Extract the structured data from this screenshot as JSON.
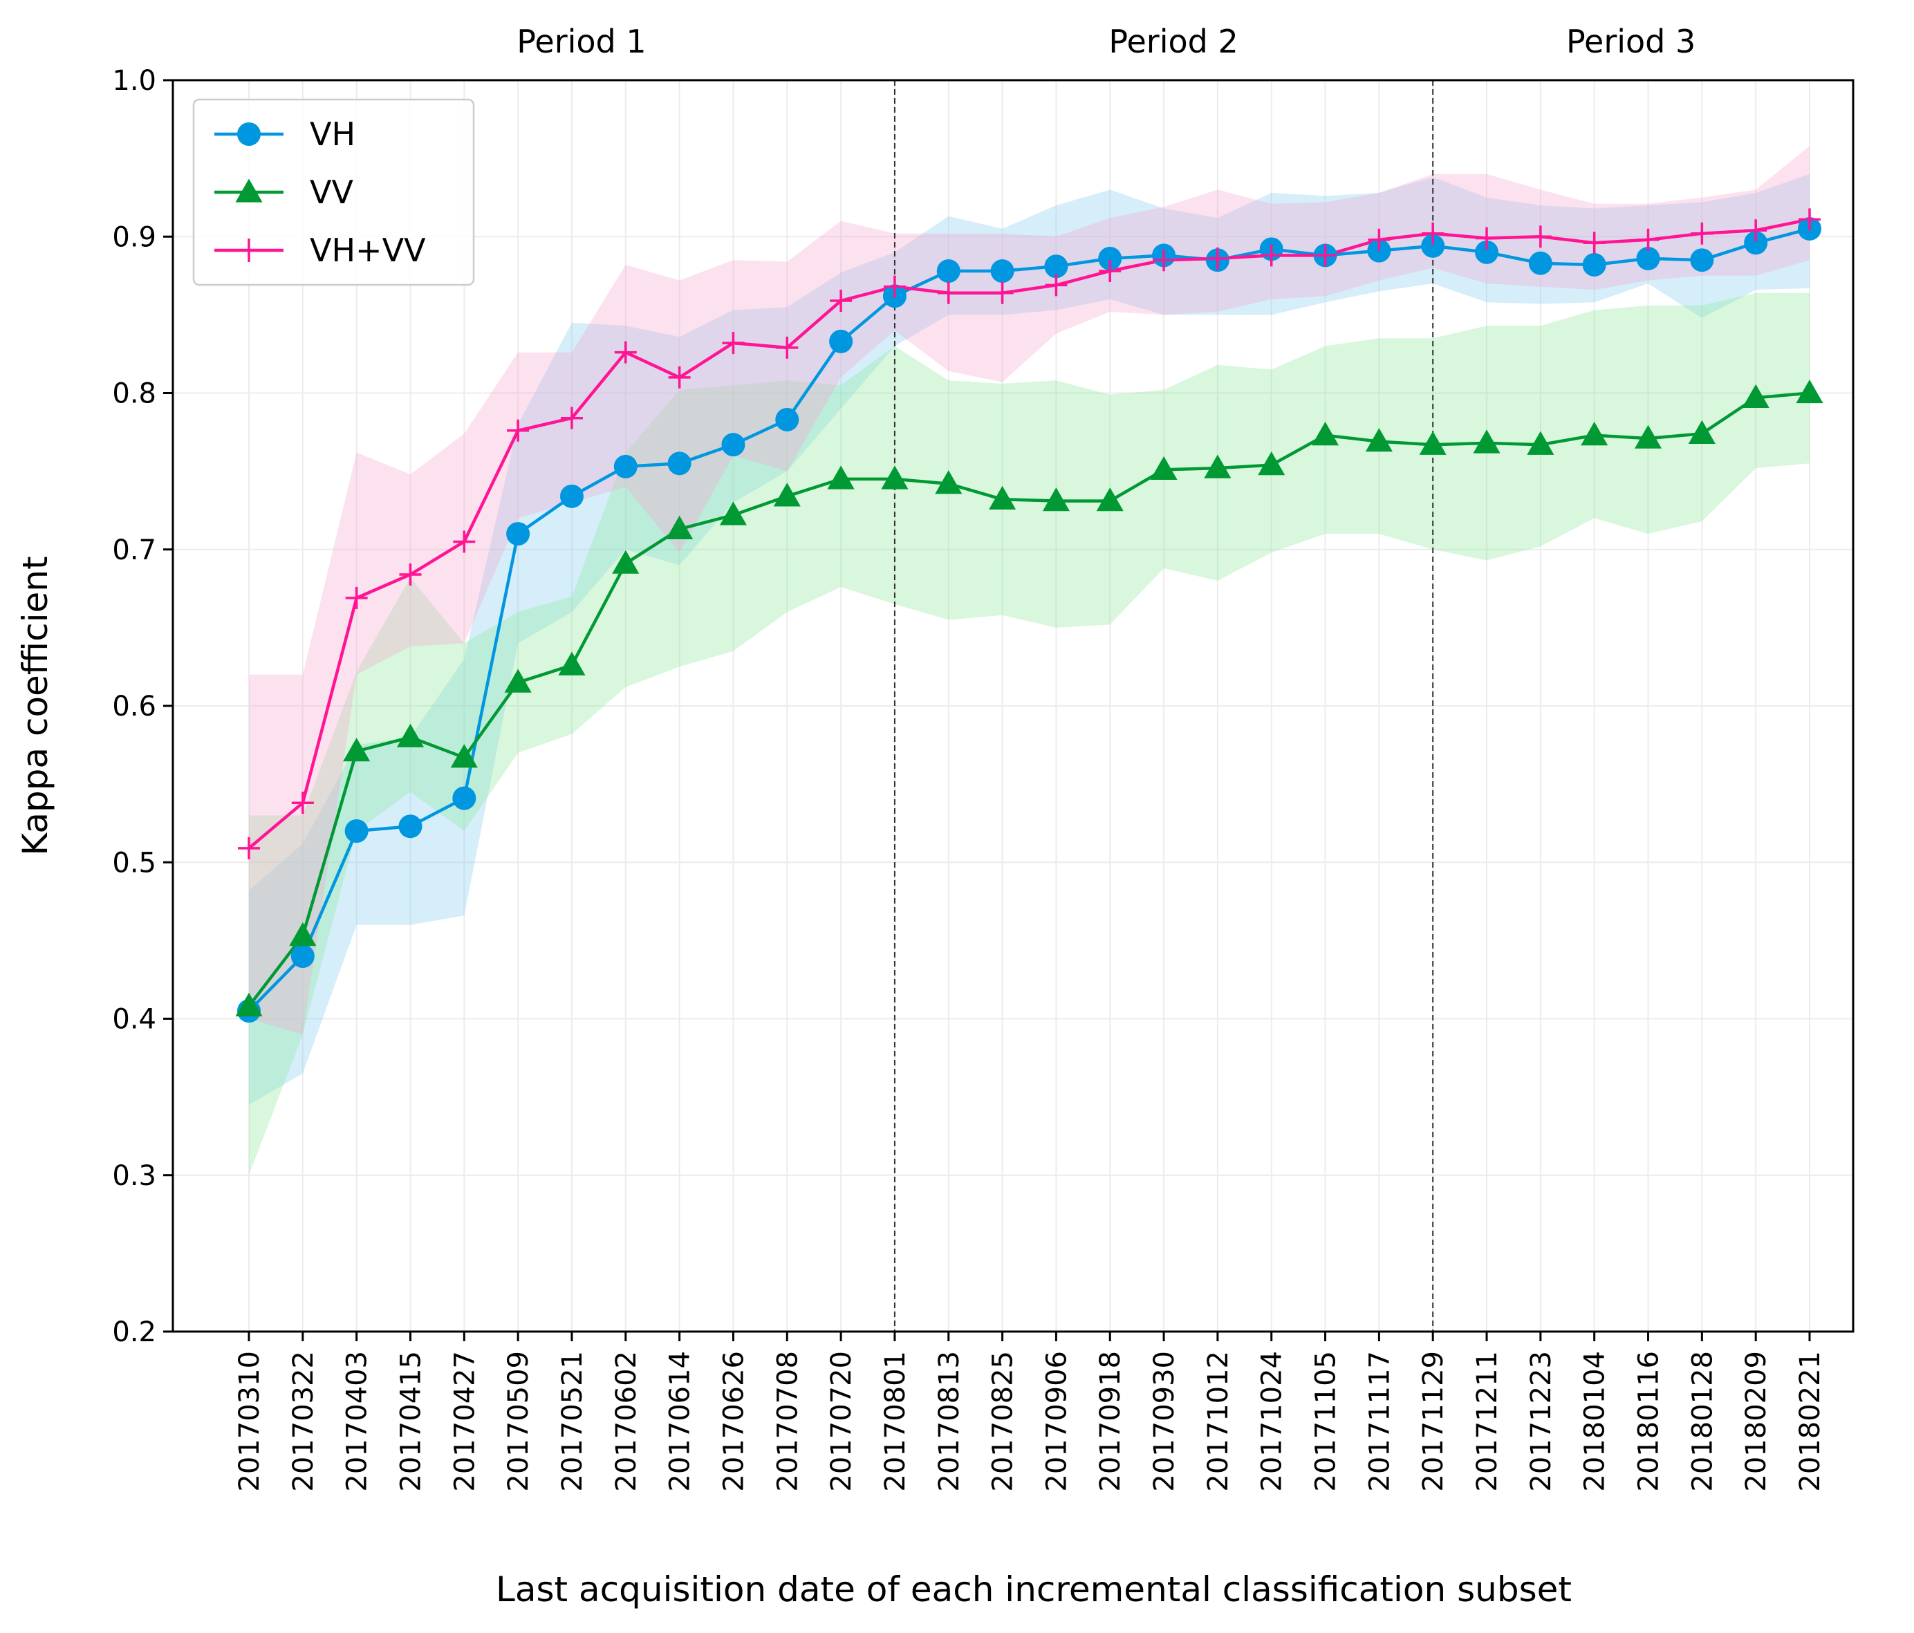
{
  "chart_data": {
    "type": "line",
    "xlabel": "Last acquisition date of each incremental classification subset",
    "ylabel": "Kappa coefficient",
    "ylim": [
      0.2,
      1.0
    ],
    "yticks": [
      "0.2",
      "0.3",
      "0.4",
      "0.5",
      "0.6",
      "0.7",
      "0.8",
      "0.9",
      "1.0"
    ],
    "grid": true,
    "legend_position": "top-left",
    "categories": [
      "20170310",
      "20170322",
      "20170403",
      "20170415",
      "20170427",
      "20170509",
      "20170521",
      "20170602",
      "20170614",
      "20170626",
      "20170708",
      "20170720",
      "20170801",
      "20170813",
      "20170825",
      "20170906",
      "20170918",
      "20170930",
      "20171012",
      "20171024",
      "20171105",
      "20171117",
      "20171129",
      "20171211",
      "20171223",
      "20180104",
      "20180116",
      "20180128",
      "20180209",
      "20180221"
    ],
    "period_dividers": [
      "20170801",
      "20171129"
    ],
    "periods": [
      {
        "label": "Period 1",
        "from": "20170310",
        "to": "20170801"
      },
      {
        "label": "Period 2",
        "from": "20170801",
        "to": "20171129"
      },
      {
        "label": "Period 3",
        "from": "20171129",
        "to": "20180221"
      }
    ],
    "series": [
      {
        "name": "VH",
        "color": "#0096e0",
        "band_color": "#87cef0",
        "marker": "circle",
        "values": [
          0.405,
          0.44,
          0.52,
          0.523,
          0.541,
          0.71,
          0.734,
          0.753,
          0.755,
          0.767,
          0.783,
          0.833,
          0.862,
          0.878,
          0.878,
          0.881,
          0.886,
          0.888,
          0.885,
          0.892,
          0.888,
          0.891,
          0.894,
          0.89,
          0.883,
          0.882,
          0.886,
          0.885,
          0.896,
          0.905
        ],
        "lower": [
          0.345,
          0.365,
          0.46,
          0.46,
          0.466,
          0.64,
          0.66,
          0.7,
          0.69,
          0.73,
          0.75,
          0.79,
          0.83,
          0.85,
          0.85,
          0.853,
          0.86,
          0.85,
          0.85,
          0.85,
          0.858,
          0.865,
          0.87,
          0.858,
          0.857,
          0.858,
          0.87,
          0.848,
          0.866,
          0.867
        ],
        "upper": [
          0.482,
          0.512,
          0.575,
          0.58,
          0.63,
          0.78,
          0.845,
          0.843,
          0.836,
          0.853,
          0.855,
          0.877,
          0.89,
          0.913,
          0.905,
          0.92,
          0.93,
          0.918,
          0.912,
          0.928,
          0.926,
          0.928,
          0.938,
          0.925,
          0.92,
          0.918,
          0.92,
          0.922,
          0.928,
          0.94
        ]
      },
      {
        "name": "VV",
        "color": "#009933",
        "band_color": "#8ee89e",
        "marker": "triangle",
        "values": [
          0.408,
          0.453,
          0.571,
          0.58,
          0.567,
          0.615,
          0.626,
          0.691,
          0.713,
          0.722,
          0.734,
          0.745,
          0.745,
          0.742,
          0.732,
          0.731,
          0.731,
          0.751,
          0.752,
          0.754,
          0.773,
          0.769,
          0.767,
          0.768,
          0.767,
          0.773,
          0.771,
          0.774,
          0.797,
          0.8
        ],
        "lower": [
          0.3,
          0.39,
          0.52,
          0.545,
          0.52,
          0.57,
          0.582,
          0.612,
          0.625,
          0.635,
          0.66,
          0.676,
          0.665,
          0.655,
          0.658,
          0.65,
          0.652,
          0.688,
          0.68,
          0.698,
          0.71,
          0.71,
          0.7,
          0.693,
          0.702,
          0.72,
          0.71,
          0.718,
          0.752,
          0.755
        ],
        "upper": [
          0.53,
          0.53,
          0.622,
          0.682,
          0.64,
          0.66,
          0.67,
          0.762,
          0.802,
          0.805,
          0.808,
          0.805,
          0.83,
          0.808,
          0.806,
          0.808,
          0.799,
          0.802,
          0.818,
          0.815,
          0.83,
          0.835,
          0.835,
          0.843,
          0.843,
          0.853,
          0.856,
          0.856,
          0.864,
          0.864
        ]
      },
      {
        "name": "VH+VV",
        "color": "#ff1493",
        "band_color": "#f7a8d2",
        "marker": "plus",
        "values": [
          0.509,
          0.538,
          0.669,
          0.684,
          0.705,
          0.776,
          0.784,
          0.826,
          0.81,
          0.832,
          0.829,
          0.859,
          0.868,
          0.864,
          0.864,
          0.869,
          0.878,
          0.885,
          0.886,
          0.888,
          0.888,
          0.898,
          0.902,
          0.899,
          0.9,
          0.896,
          0.898,
          0.902,
          0.904,
          0.911
        ],
        "lower": [
          0.4,
          0.39,
          0.62,
          0.638,
          0.64,
          0.72,
          0.73,
          0.74,
          0.698,
          0.76,
          0.75,
          0.81,
          0.84,
          0.814,
          0.807,
          0.838,
          0.852,
          0.85,
          0.852,
          0.86,
          0.862,
          0.872,
          0.88,
          0.87,
          0.868,
          0.866,
          0.872,
          0.875,
          0.875,
          0.885
        ],
        "upper": [
          0.62,
          0.62,
          0.762,
          0.748,
          0.774,
          0.826,
          0.826,
          0.882,
          0.872,
          0.885,
          0.884,
          0.91,
          0.902,
          0.902,
          0.902,
          0.9,
          0.912,
          0.919,
          0.93,
          0.921,
          0.922,
          0.928,
          0.94,
          0.94,
          0.93,
          0.921,
          0.921,
          0.925,
          0.93,
          0.958
        ]
      }
    ]
  }
}
